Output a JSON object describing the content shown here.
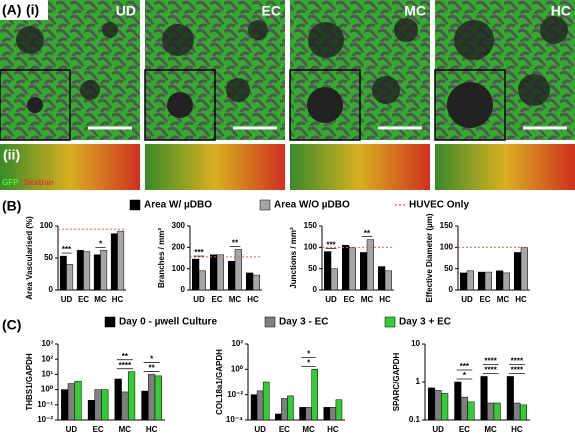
{
  "panel_a": {
    "label": "(A)",
    "row_labels": [
      "(i)",
      "(ii)"
    ],
    "conditions": [
      "UD",
      "EC",
      "MC",
      "HC"
    ],
    "stain_labels": [
      "GFP",
      "Dextran"
    ]
  },
  "panel_b_label": "(B)",
  "panel_c_label": "(C)",
  "legend_b": [
    {
      "name": "Area W/ µDBO",
      "color": "#000000"
    },
    {
      "name": "Area W/O µDBO",
      "color": "#a6a6a6"
    },
    {
      "name": "HUVEC Only",
      "color": "#e06666"
    }
  ],
  "legend_c": [
    {
      "name": "Day 0 - µwell Culture",
      "color": "#000000"
    },
    {
      "name": "Day 3 - EC",
      "color": "#7f7f7f"
    },
    {
      "name": "Day 3 + EC",
      "color": "#33cc33"
    }
  ],
  "chart_data": [
    {
      "type": "bar",
      "ylabel": "Area Vascularised (%)",
      "categories": [
        "UD",
        "EC",
        "MC",
        "HC"
      ],
      "series": [
        {
          "values": [
            53,
            62,
            55,
            88
          ]
        },
        {
          "values": [
            40,
            60,
            62,
            92
          ]
        }
      ],
      "ylim": [
        0,
        100
      ],
      "yticks": [
        0,
        50,
        100
      ],
      "reference": 95,
      "annotations": [
        {
          "text": "***",
          "category": 0
        },
        {
          "text": "*",
          "category": 2
        }
      ]
    },
    {
      "type": "bar",
      "ylabel": "Branches / mm²",
      "categories": [
        "UD",
        "EC",
        "MC",
        "HC"
      ],
      "series": [
        {
          "values": [
            145,
            165,
            135,
            80
          ]
        },
        {
          "values": [
            90,
            165,
            190,
            70
          ]
        }
      ],
      "ylim": [
        0,
        300
      ],
      "yticks": [
        0,
        100,
        200,
        300
      ],
      "reference": 155,
      "annotations": [
        {
          "text": "***",
          "category": 0
        },
        {
          "text": "**",
          "category": 2
        }
      ]
    },
    {
      "type": "bar",
      "ylabel": "Junctions / mm²",
      "categories": [
        "UD",
        "EC",
        "MC",
        "HC"
      ],
      "series": [
        {
          "values": [
            90,
            105,
            88,
            55
          ]
        },
        {
          "values": [
            50,
            100,
            118,
            45
          ]
        }
      ],
      "ylim": [
        0,
        150
      ],
      "yticks": [
        0,
        50,
        100,
        150
      ],
      "reference": 100,
      "annotations": [
        {
          "text": "***",
          "category": 0
        },
        {
          "text": "**",
          "category": 2
        }
      ]
    },
    {
      "type": "bar",
      "ylabel": "Effective Diameter (µm)",
      "categories": [
        "UD",
        "EC",
        "MC",
        "HC"
      ],
      "series": [
        {
          "values": [
            40,
            42,
            45,
            88
          ]
        },
        {
          "values": [
            45,
            42,
            40,
            100
          ]
        }
      ],
      "ylim": [
        0,
        150
      ],
      "yticks": [
        0,
        50,
        100,
        150
      ],
      "reference": 100,
      "annotations": []
    },
    {
      "type": "bar",
      "log": true,
      "ylabel": "THBS1/GAPDH",
      "categories": [
        "UD",
        "EC",
        "MC",
        "HC"
      ],
      "series": [
        {
          "values": [
            1,
            0.2,
            5,
            0.8
          ]
        },
        {
          "values": [
            2.5,
            1,
            0.7,
            10
          ]
        },
        {
          "values": [
            3.5,
            1,
            15,
            8
          ]
        }
      ],
      "ylim": [
        0.01,
        1000
      ],
      "yticks": [
        {
          "value": 0.01,
          "label": "10⁻²"
        },
        {
          "value": 0.1,
          "label": "10⁻¹"
        },
        {
          "value": 1,
          "label": "10⁰"
        },
        {
          "value": 10,
          "label": "10¹"
        },
        {
          "value": 100,
          "label": "10²"
        },
        {
          "value": 1000,
          "label": "10³"
        }
      ],
      "annotations": [
        {
          "text": "****",
          "category": 2
        },
        {
          "text": "**",
          "category": 2
        },
        {
          "text": "**",
          "category": 3
        },
        {
          "text": "*",
          "category": 3
        }
      ]
    },
    {
      "type": "bar",
      "log": true,
      "ylabel": "COL18a1/GAPDH",
      "categories": [
        "UD",
        "EC",
        "MC",
        "HC"
      ],
      "series": [
        {
          "values": [
            0.01,
            0.0003,
            0.001,
            0.001
          ]
        },
        {
          "values": [
            0.02,
            0.005,
            0.001,
            0.001
          ]
        },
        {
          "values": [
            0.1,
            0.008,
            1,
            0.004
          ]
        }
      ],
      "ylim": [
        0.0001,
        100
      ],
      "yticks": [
        {
          "value": 0.0001,
          "label": "10⁻⁴"
        },
        {
          "value": 0.01,
          "label": "10⁻²"
        },
        {
          "value": 1,
          "label": "10⁰"
        },
        {
          "value": 100,
          "label": "10²"
        }
      ],
      "annotations": [
        {
          "text": "*",
          "category": 2
        },
        {
          "text": "*",
          "category": 2
        }
      ]
    },
    {
      "type": "bar",
      "log": true,
      "ylabel": "SPARC/GAPDH",
      "categories": [
        "UD",
        "EC",
        "MC",
        "HC"
      ],
      "series": [
        {
          "values": [
            0.7,
            1,
            1.4,
            1.4
          ]
        },
        {
          "values": [
            0.6,
            0.4,
            0.28,
            0.28
          ]
        },
        {
          "values": [
            0.5,
            0.3,
            0.28,
            0.25
          ]
        }
      ],
      "ylim": [
        0.1,
        10
      ],
      "yticks": [
        0.1,
        1,
        10
      ],
      "annotations": [
        {
          "text": "*",
          "category": 1
        },
        {
          "text": "***",
          "category": 1
        },
        {
          "text": "****",
          "category": 2
        },
        {
          "text": "****",
          "category": 2
        },
        {
          "text": "****",
          "category": 3
        },
        {
          "text": "****",
          "category": 3
        }
      ]
    }
  ]
}
